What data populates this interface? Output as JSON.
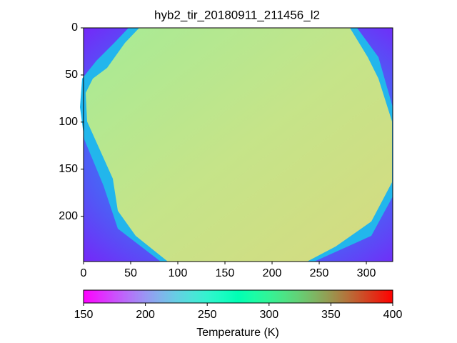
{
  "chart_data": {
    "type": "heatmap",
    "title": "hyb2_tir_20180911_211456_l2",
    "xlim": [
      0,
      328
    ],
    "xticks": [
      0,
      50,
      100,
      150,
      200,
      250,
      300
    ],
    "ylim": [
      248,
      0
    ],
    "yticks": [
      0,
      50,
      100,
      150,
      200
    ],
    "colormap": "rainbow",
    "clim": [
      150,
      400
    ],
    "cticks": [
      150,
      200,
      250,
      300,
      350,
      400
    ],
    "colorbar_label": "Temperature (K)"
  }
}
